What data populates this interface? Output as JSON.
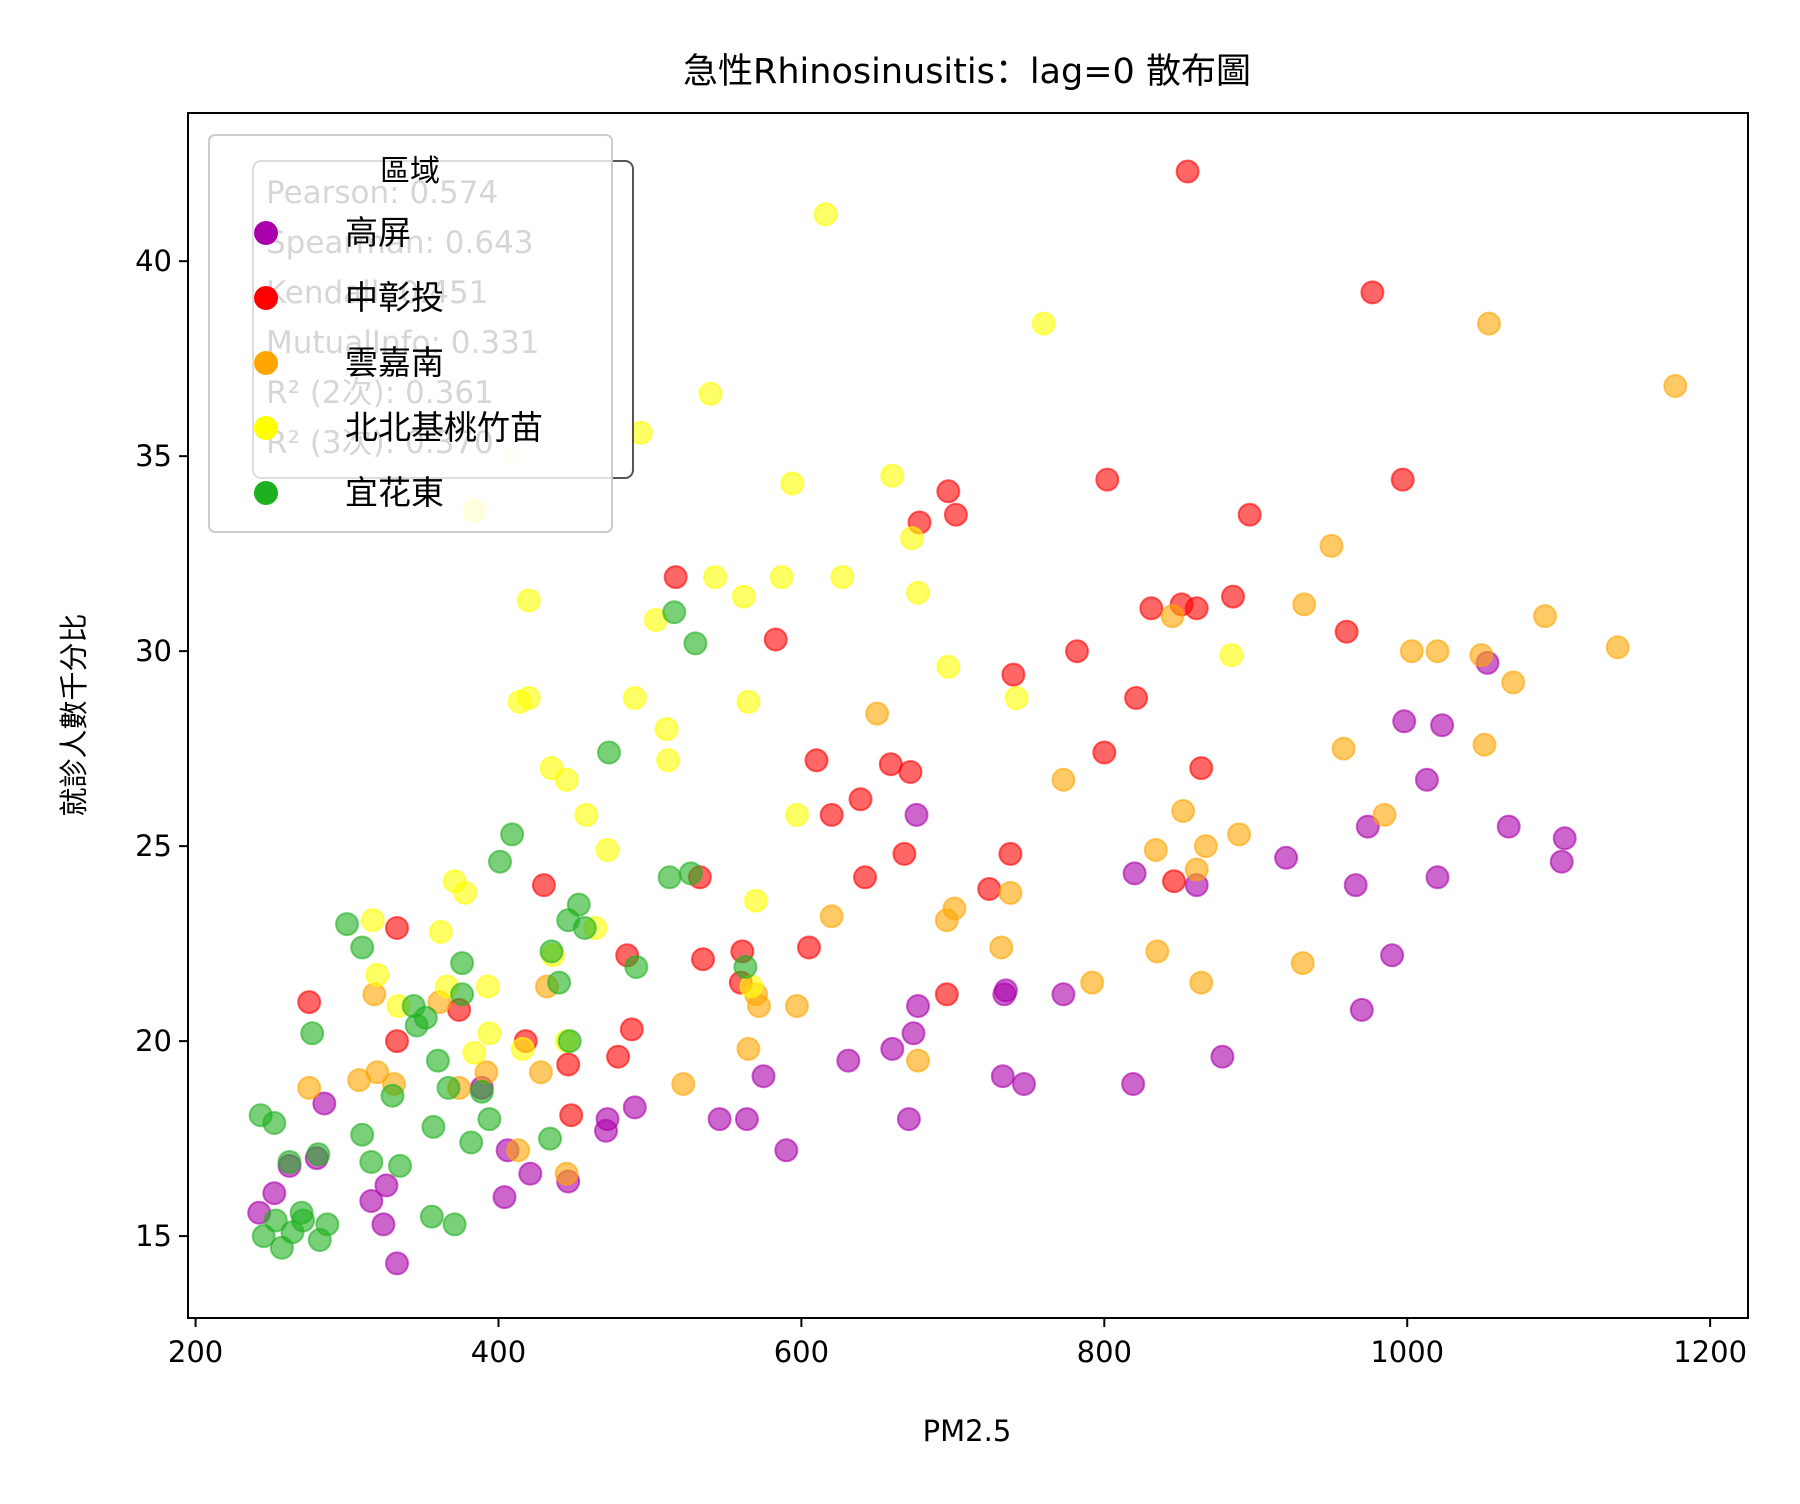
{
  "chart_data": {
    "type": "scatter",
    "title": "急性Rhinosinusitis：lag=0 散布圖",
    "xlabel": "PM2.5",
    "ylabel": "就診人數千分比",
    "xlim": [
      195,
      1225
    ],
    "ylim": [
      12.9,
      43.8
    ],
    "xticks": [
      200,
      400,
      600,
      800,
      1000,
      1200
    ],
    "yticks": [
      15,
      20,
      25,
      30,
      35,
      40
    ],
    "grid": false,
    "legend": {
      "title": "區域",
      "placement": "top-left"
    },
    "stats": [
      "Pearson: 0.574",
      "Spearman: 0.643",
      "Kendall: 0.451",
      "MutualInfo: 0.331",
      "R² (2次): 0.361",
      "R² (3次): 0.370"
    ],
    "series": [
      {
        "name": "高屏",
        "color": "#aa00aa",
        "points": [
          [
            242,
            15.6
          ],
          [
            252,
            16.1
          ],
          [
            262,
            16.8
          ],
          [
            280,
            17.0
          ],
          [
            285,
            18.4
          ],
          [
            316,
            15.9
          ],
          [
            324,
            15.3
          ],
          [
            326,
            16.3
          ],
          [
            333,
            14.3
          ],
          [
            389,
            18.8
          ],
          [
            404,
            16.0
          ],
          [
            406,
            17.2
          ],
          [
            421,
            16.6
          ],
          [
            446,
            16.4
          ],
          [
            471,
            17.7
          ],
          [
            472,
            18.0
          ],
          [
            490,
            18.3
          ],
          [
            546,
            18.0
          ],
          [
            564,
            18.0
          ],
          [
            575,
            19.1
          ],
          [
            590,
            17.2
          ],
          [
            631,
            19.5
          ],
          [
            660,
            19.8
          ],
          [
            671,
            18.0
          ],
          [
            674,
            20.2
          ],
          [
            676,
            25.8
          ],
          [
            677,
            20.9
          ],
          [
            733,
            19.1
          ],
          [
            734,
            21.2
          ],
          [
            735,
            21.3
          ],
          [
            747,
            18.9
          ],
          [
            773,
            21.2
          ],
          [
            819,
            18.9
          ],
          [
            820,
            24.3
          ],
          [
            861,
            24.0
          ],
          [
            878,
            19.6
          ],
          [
            920,
            24.7
          ],
          [
            966,
            24.0
          ],
          [
            970,
            20.8
          ],
          [
            974,
            25.5
          ],
          [
            990,
            22.2
          ],
          [
            998,
            28.2
          ],
          [
            1013,
            26.7
          ],
          [
            1020,
            24.2
          ],
          [
            1023,
            28.1
          ],
          [
            1053,
            29.7
          ],
          [
            1067,
            25.5
          ],
          [
            1102,
            24.6
          ],
          [
            1104,
            25.2
          ]
        ]
      },
      {
        "name": "中彰投",
        "color": "#ff0000",
        "points": [
          [
            275,
            21.0
          ],
          [
            333,
            22.9
          ],
          [
            333,
            20.0
          ],
          [
            374,
            20.8
          ],
          [
            418,
            20.0
          ],
          [
            430,
            24.0
          ],
          [
            446,
            19.4
          ],
          [
            448,
            18.1
          ],
          [
            479,
            19.6
          ],
          [
            485,
            22.2
          ],
          [
            488,
            20.3
          ],
          [
            517,
            31.9
          ],
          [
            533,
            24.2
          ],
          [
            535,
            22.1
          ],
          [
            560,
            21.5
          ],
          [
            561,
            22.3
          ],
          [
            583,
            30.3
          ],
          [
            605,
            22.4
          ],
          [
            610,
            27.2
          ],
          [
            620,
            25.8
          ],
          [
            639,
            26.2
          ],
          [
            642,
            24.2
          ],
          [
            659,
            27.1
          ],
          [
            668,
            24.8
          ],
          [
            672,
            26.9
          ],
          [
            678,
            33.3
          ],
          [
            696,
            21.2
          ],
          [
            697,
            34.1
          ],
          [
            702,
            33.5
          ],
          [
            724,
            23.9
          ],
          [
            738,
            24.8
          ],
          [
            740,
            29.4
          ],
          [
            782,
            30.0
          ],
          [
            800,
            27.4
          ],
          [
            802,
            34.4
          ],
          [
            821,
            28.8
          ],
          [
            831,
            31.1
          ],
          [
            846,
            24.1
          ],
          [
            851,
            31.2
          ],
          [
            855,
            42.3
          ],
          [
            861,
            31.1
          ],
          [
            864,
            27.0
          ],
          [
            885,
            31.4
          ],
          [
            896,
            33.5
          ],
          [
            960,
            30.5
          ],
          [
            977,
            39.2
          ],
          [
            997,
            34.4
          ]
        ]
      },
      {
        "name": "雲嘉南",
        "color": "#ffa500",
        "points": [
          [
            275,
            18.8
          ],
          [
            308,
            19.0
          ],
          [
            318,
            21.2
          ],
          [
            320,
            19.2
          ],
          [
            331,
            18.9
          ],
          [
            361,
            21.0
          ],
          [
            374,
            18.8
          ],
          [
            392,
            19.2
          ],
          [
            413,
            17.2
          ],
          [
            428,
            19.2
          ],
          [
            432,
            21.4
          ],
          [
            445,
            16.6
          ],
          [
            522,
            18.9
          ],
          [
            565,
            19.8
          ],
          [
            570,
            21.2
          ],
          [
            572,
            20.9
          ],
          [
            597,
            20.9
          ],
          [
            620,
            23.2
          ],
          [
            650,
            28.4
          ],
          [
            677,
            19.5
          ],
          [
            696,
            23.1
          ],
          [
            701,
            23.4
          ],
          [
            732,
            22.4
          ],
          [
            738,
            23.8
          ],
          [
            773,
            26.7
          ],
          [
            792,
            21.5
          ],
          [
            834,
            24.9
          ],
          [
            835,
            22.3
          ],
          [
            845,
            30.9
          ],
          [
            852,
            25.9
          ],
          [
            861,
            24.4
          ],
          [
            864,
            21.5
          ],
          [
            867,
            25.0
          ],
          [
            889,
            25.3
          ],
          [
            931,
            22.0
          ],
          [
            932,
            31.2
          ],
          [
            950,
            32.7
          ],
          [
            958,
            27.5
          ],
          [
            985,
            25.8
          ],
          [
            1003,
            30.0
          ],
          [
            1020,
            30.0
          ],
          [
            1049,
            29.9
          ],
          [
            1051,
            27.6
          ],
          [
            1054,
            38.4
          ],
          [
            1070,
            29.2
          ],
          [
            1091,
            30.9
          ],
          [
            1139,
            30.1
          ],
          [
            1177,
            36.8
          ]
        ]
      },
      {
        "name": "北北基桃竹苗",
        "color": "#ffff00",
        "points": [
          [
            317,
            23.1
          ],
          [
            320,
            21.7
          ],
          [
            334,
            20.9
          ],
          [
            362,
            22.8
          ],
          [
            366,
            21.4
          ],
          [
            371,
            24.1
          ],
          [
            378,
            23.8
          ],
          [
            384,
            19.7
          ],
          [
            384,
            33.6
          ],
          [
            393,
            21.4
          ],
          [
            394,
            20.2
          ],
          [
            410,
            35.0
          ],
          [
            414,
            28.7
          ],
          [
            416,
            19.8
          ],
          [
            420,
            28.8
          ],
          [
            420,
            31.3
          ],
          [
            435,
            27.0
          ],
          [
            436,
            22.2
          ],
          [
            445,
            26.7
          ],
          [
            445,
            20.0
          ],
          [
            458,
            25.8
          ],
          [
            464,
            22.9
          ],
          [
            472,
            24.9
          ],
          [
            490,
            28.8
          ],
          [
            494,
            35.6
          ],
          [
            504,
            30.8
          ],
          [
            511,
            28.0
          ],
          [
            512,
            27.2
          ],
          [
            540,
            36.6
          ],
          [
            543,
            31.9
          ],
          [
            562,
            31.4
          ],
          [
            565,
            28.7
          ],
          [
            567,
            21.4
          ],
          [
            570,
            23.6
          ],
          [
            587,
            31.9
          ],
          [
            594,
            34.3
          ],
          [
            597,
            25.8
          ],
          [
            616,
            41.2
          ],
          [
            627,
            31.9
          ],
          [
            660,
            34.5
          ],
          [
            673,
            32.9
          ],
          [
            677,
            31.5
          ],
          [
            697,
            29.6
          ],
          [
            742,
            28.8
          ],
          [
            760,
            38.4
          ],
          [
            884,
            29.9
          ]
        ]
      },
      {
        "name": "宜花東",
        "color": "#1fb01f",
        "points": [
          [
            243,
            18.1
          ],
          [
            245,
            15.0
          ],
          [
            252,
            17.9
          ],
          [
            253,
            15.4
          ],
          [
            257,
            14.7
          ],
          [
            262,
            16.9
          ],
          [
            264,
            15.1
          ],
          [
            270,
            15.6
          ],
          [
            271,
            15.4
          ],
          [
            277,
            20.2
          ],
          [
            281,
            17.1
          ],
          [
            282,
            14.9
          ],
          [
            287,
            15.3
          ],
          [
            300,
            23.0
          ],
          [
            310,
            17.6
          ],
          [
            310,
            22.4
          ],
          [
            316,
            16.9
          ],
          [
            330,
            18.6
          ],
          [
            335,
            16.8
          ],
          [
            344,
            20.9
          ],
          [
            346,
            20.4
          ],
          [
            352,
            20.6
          ],
          [
            356,
            15.5
          ],
          [
            357,
            17.8
          ],
          [
            360,
            19.5
          ],
          [
            367,
            18.8
          ],
          [
            371,
            15.3
          ],
          [
            376,
            21.2
          ],
          [
            376,
            22.0
          ],
          [
            382,
            17.4
          ],
          [
            389,
            18.7
          ],
          [
            394,
            18.0
          ],
          [
            401,
            24.6
          ],
          [
            409,
            25.3
          ],
          [
            434,
            17.5
          ],
          [
            435,
            22.3
          ],
          [
            440,
            21.5
          ],
          [
            446,
            23.1
          ],
          [
            447,
            20.0
          ],
          [
            453,
            23.5
          ],
          [
            457,
            22.9
          ],
          [
            473,
            27.4
          ],
          [
            491,
            21.9
          ],
          [
            513,
            24.2
          ],
          [
            516,
            31.0
          ],
          [
            527,
            24.3
          ],
          [
            530,
            30.2
          ],
          [
            563,
            21.9
          ]
        ]
      }
    ]
  }
}
